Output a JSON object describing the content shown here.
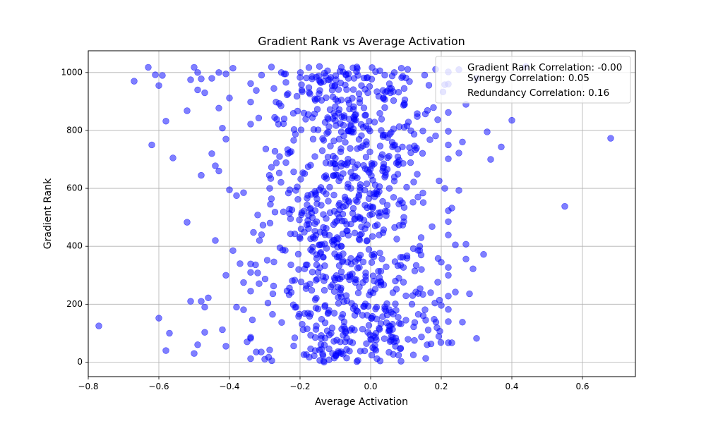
{
  "chart_data": {
    "type": "scatter",
    "title": "Gradient Rank vs Average Activation",
    "xlabel": "Average Activation",
    "ylabel": "Gradient Rank",
    "xlim": [
      -0.8,
      0.75
    ],
    "ylim": [
      -50,
      1075
    ],
    "xticks": [
      "−0.8",
      "−0.6",
      "−0.4",
      "−0.2",
      "0.0",
      "0.2",
      "0.4",
      "0.6"
    ],
    "xtick_values": [
      -0.8,
      -0.6,
      -0.4,
      -0.2,
      0.0,
      0.2,
      0.4,
      0.6
    ],
    "yticks": [
      "0",
      "200",
      "400",
      "600",
      "800",
      "1000"
    ],
    "ytick_values": [
      0,
      200,
      400,
      600,
      800,
      1000
    ],
    "grid": true,
    "legend_position": "top-right",
    "legend": [
      "Gradient Rank Correlation: -0.00",
      "Synergy Correlation: 0.05",
      "Redundancy Correlation: 0.16"
    ],
    "point_color": "#0000ff",
    "point_opacity": 0.5,
    "series": [
      {
        "points": [
          [
            -0.63,
            1018
          ],
          [
            -0.67,
            970
          ],
          [
            -0.61,
            992
          ],
          [
            -0.6,
            955
          ],
          [
            -0.59,
            990
          ],
          [
            -0.58,
            832
          ],
          [
            -0.62,
            750
          ],
          [
            -0.56,
            705
          ],
          [
            -0.52,
            868
          ],
          [
            -0.5,
            1018
          ],
          [
            -0.49,
            1000
          ],
          [
            -0.48,
            978
          ],
          [
            -0.47,
            930
          ],
          [
            -0.51,
            975
          ],
          [
            -0.49,
            940
          ],
          [
            -0.45,
            980
          ],
          [
            -0.43,
            1000
          ],
          [
            -0.41,
            995
          ],
          [
            -0.39,
            1015
          ],
          [
            -0.4,
            912
          ],
          [
            -0.43,
            877
          ],
          [
            -0.42,
            808
          ],
          [
            -0.41,
            770
          ],
          [
            -0.45,
            720
          ],
          [
            -0.43,
            660
          ],
          [
            -0.48,
            645
          ],
          [
            -0.44,
            678
          ],
          [
            -0.4,
            595
          ],
          [
            -0.52,
            483
          ],
          [
            -0.44,
            420
          ],
          [
            -0.39,
            385
          ],
          [
            -0.38,
            575
          ],
          [
            -0.36,
            585
          ],
          [
            -0.41,
            300
          ],
          [
            -0.37,
            340
          ],
          [
            -0.48,
            210
          ],
          [
            -0.47,
            190
          ],
          [
            -0.46,
            222
          ],
          [
            -0.51,
            210
          ],
          [
            -0.6,
            152
          ],
          [
            -0.57,
            100
          ],
          [
            -0.58,
            40
          ],
          [
            -0.77,
            125
          ],
          [
            -0.49,
            60
          ],
          [
            -0.5,
            30
          ],
          [
            -0.47,
            103
          ],
          [
            -0.42,
            112
          ],
          [
            -0.41,
            55
          ],
          [
            -0.38,
            190
          ],
          [
            -0.36,
            275
          ],
          [
            -0.36,
            181
          ],
          [
            -0.35,
            70
          ],
          [
            -0.34,
            82
          ],
          [
            -0.32,
            308
          ],
          [
            -0.31,
            35
          ],
          [
            -0.3,
            10
          ],
          [
            -0.28,
            5
          ],
          [
            0.68,
            773
          ],
          [
            0.55,
            538
          ],
          [
            0.44,
            1020
          ],
          [
            0.4,
            835
          ],
          [
            0.37,
            743
          ],
          [
            0.34,
            700
          ],
          [
            0.33,
            795
          ],
          [
            0.32,
            372
          ],
          [
            0.3,
            82
          ],
          [
            0.29,
            322
          ],
          [
            0.28,
            236
          ],
          [
            0.27,
            407
          ],
          [
            0.27,
            356
          ],
          [
            0.26,
            138
          ],
          [
            0.25,
            593
          ],
          [
            0.25,
            722
          ],
          [
            0.24,
            242
          ],
          [
            0.24,
            405
          ],
          [
            0.23,
            67
          ],
          [
            0.23,
            532
          ],
          [
            0.22,
            702
          ],
          [
            0.22,
            960
          ],
          [
            0.21,
            958
          ],
          [
            0.2,
            196
          ],
          [
            0.2,
            345
          ],
          [
            0.19,
            837
          ],
          [
            0.19,
            276
          ],
          [
            0.18,
            148
          ],
          [
            0.3,
            980
          ],
          [
            0.27,
            890
          ],
          [
            0.25,
            1010
          ],
          [
            0.26,
            760
          ],
          [
            0.21,
            600
          ],
          [
            0.22,
            300
          ]
        ]
      }
    ]
  }
}
